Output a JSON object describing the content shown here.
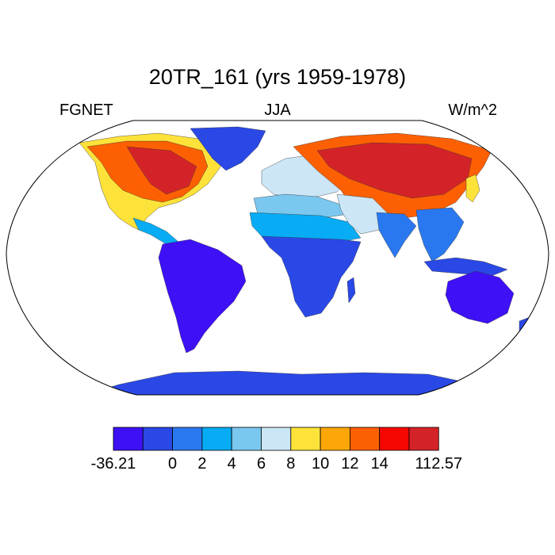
{
  "title": "20TR_161 (yrs 1959-1978)",
  "left_label": "FGNET",
  "center_label": "JJA",
  "right_label": "W/m^2",
  "palette": [
    "#3e10f6",
    "#2a48e6",
    "#2a78f0",
    "#08acf5",
    "#7ac8f0",
    "#cce6f7",
    "#fde23a",
    "#fda607",
    "#fd6002",
    "#f60702",
    "#d42328"
  ],
  "colorbar_labels": [
    "-36.21",
    "0",
    "2",
    "4",
    "6",
    "8",
    "10",
    "12",
    "14",
    "112.57"
  ],
  "land_color_default": "#2a48e6"
}
